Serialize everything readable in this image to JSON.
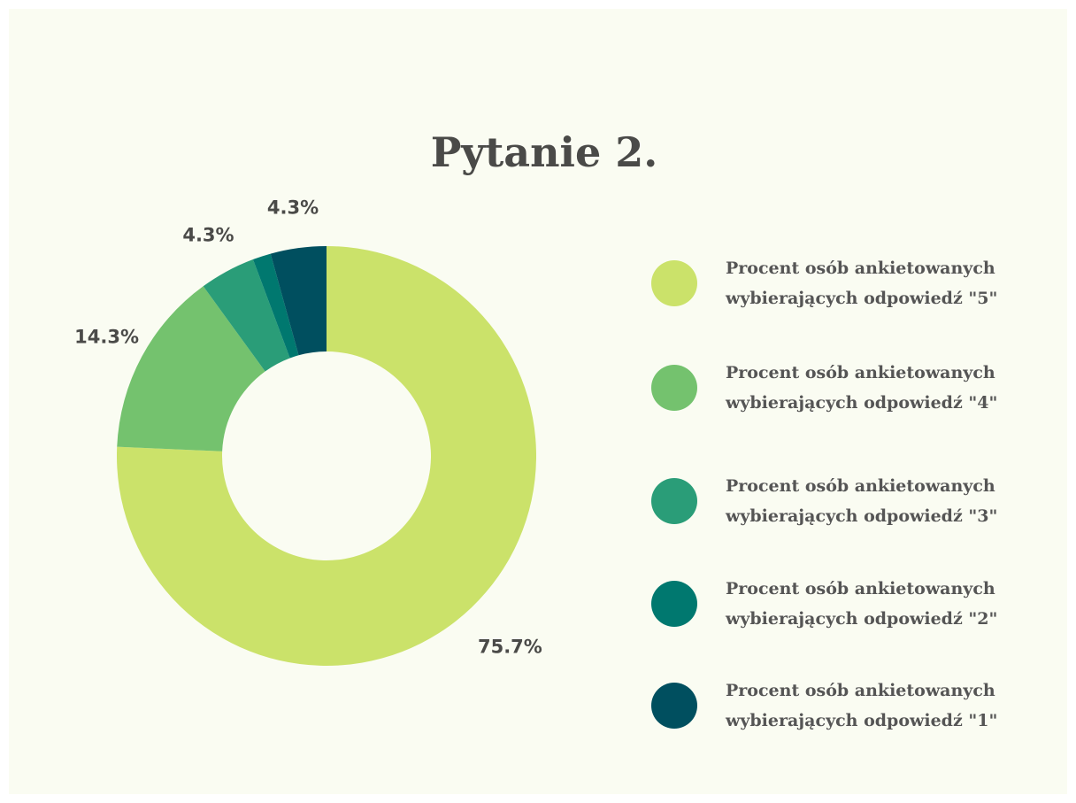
{
  "chart_data": {
    "type": "donut",
    "title": "Pytanie 2.",
    "series": [
      {
        "name": "Procent osób ankietowanych wybierających odpowiedź \"5\"",
        "color": "#cbe26a",
        "value": 75.7,
        "value_label": "75.7%"
      },
      {
        "name": "Procent osób ankietowanych wybierających odpowiedź \"4\"",
        "color": "#74c26e",
        "value": 14.3,
        "value_label": "14.3%"
      },
      {
        "name": "Procent osób ankietowanych wybierających odpowiedź \"3\"",
        "color": "#2a9d78",
        "value": 4.3,
        "value_label": "4.3%"
      },
      {
        "name": "Procent osób ankietowanych wybierających odpowiedź \"2\"",
        "color": "#00786f",
        "value": 1.4,
        "value_label": null
      },
      {
        "name": "Procent osób ankietowanych wybierających odpowiedź \"1\"",
        "color": "#004f5f",
        "value": 4.3,
        "value_label": "4.3%"
      }
    ],
    "legend": "right"
  }
}
